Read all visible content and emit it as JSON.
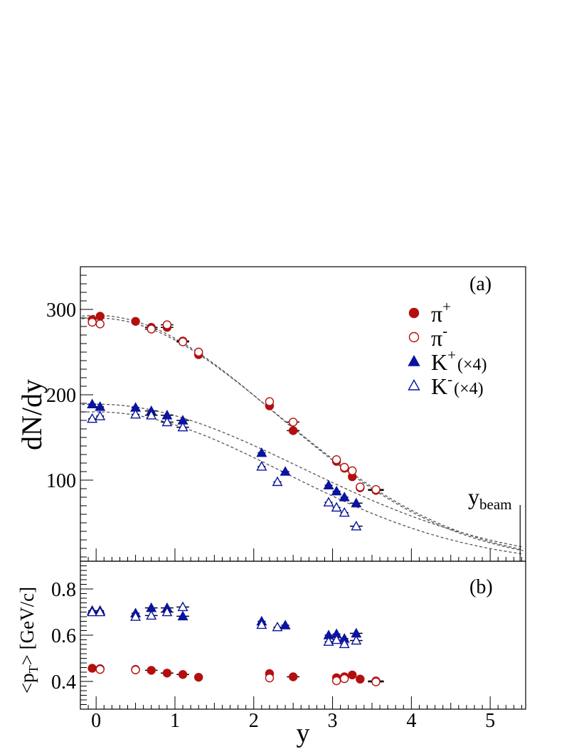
{
  "chart_data": [
    {
      "type": "scatter",
      "panel_label": "(a)",
      "ylabel": "dN/dy",
      "xlim": [
        -0.2,
        5.45
      ],
      "ylim": [
        5,
        350
      ],
      "yticks": [
        100,
        200,
        300
      ],
      "beam_label_main": "y",
      "beam_label_sub": "beam",
      "y_beam": 5.38,
      "series": [
        {
          "name": "pi_plus",
          "legend_main": "π",
          "legend_sup": "+",
          "legend_suffix": "",
          "color": "#b40f0f",
          "marker": "circle",
          "filled": true,
          "points": [
            [
              -0.05,
              288,
              0.05
            ],
            [
              0.05,
              292,
              0.05
            ],
            [
              0.5,
              286,
              0.05
            ],
            [
              0.7,
              279,
              0.08
            ],
            [
              0.9,
              279,
              0.08
            ],
            [
              1.1,
              263,
              0.08
            ],
            [
              1.3,
              247,
              0.05
            ],
            [
              2.2,
              187,
              0.05
            ],
            [
              2.5,
              158,
              0.08
            ],
            [
              3.05,
              122,
              0.05
            ],
            [
              3.15,
              114,
              0.05
            ],
            [
              3.25,
              104,
              0.05
            ],
            [
              3.35,
              91,
              0.05
            ],
            [
              3.55,
              88,
              0.1
            ]
          ]
        },
        {
          "name": "pi_minus",
          "legend_main": "π",
          "legend_sup": "-",
          "legend_suffix": "",
          "color": "#b40f0f",
          "marker": "circle",
          "filled": false,
          "points": [
            [
              -0.05,
              285,
              0.05
            ],
            [
              0.05,
              283,
              0.05
            ],
            [
              0.7,
              277,
              0.08
            ],
            [
              0.9,
              282,
              0.08
            ],
            [
              1.1,
              262,
              0.08
            ],
            [
              1.3,
              250,
              0.05
            ],
            [
              2.2,
              192,
              0.05
            ],
            [
              2.5,
              168,
              0.08
            ],
            [
              3.05,
              124,
              0.05
            ],
            [
              3.15,
              115,
              0.05
            ],
            [
              3.25,
              111,
              0.05
            ],
            [
              3.35,
              92,
              0.05
            ],
            [
              3.55,
              89,
              0.1
            ]
          ]
        },
        {
          "name": "k_plus",
          "legend_main": "K",
          "legend_sup": "+",
          "legend_suffix": "(×4)",
          "color": "#0a14a0",
          "marker": "triangle",
          "filled": true,
          "points": [
            [
              -0.05,
              189,
              0.05
            ],
            [
              0.05,
              186,
              0.05
            ],
            [
              0.5,
              185,
              0.05
            ],
            [
              0.7,
              181,
              0.08
            ],
            [
              0.9,
              176,
              0.08
            ],
            [
              1.1,
              170,
              0.08
            ],
            [
              2.1,
              132,
              0.05
            ],
            [
              2.4,
              110,
              0.05
            ],
            [
              2.95,
              94,
              0.05
            ],
            [
              3.05,
              87,
              0.05
            ],
            [
              3.15,
              80,
              0.05
            ],
            [
              3.3,
              73,
              0.08
            ]
          ]
        },
        {
          "name": "k_minus",
          "legend_main": "K",
          "legend_sup": "-",
          "legend_suffix": "(×4)",
          "color": "#0a14a0",
          "marker": "triangle",
          "filled": false,
          "points": [
            [
              -0.05,
              172,
              0.05
            ],
            [
              0.05,
              175,
              0.05
            ],
            [
              0.5,
              177,
              0.05
            ],
            [
              0.7,
              176,
              0.08
            ],
            [
              0.9,
              168,
              0.08
            ],
            [
              1.1,
              162,
              0.08
            ],
            [
              2.1,
              116,
              0.05
            ],
            [
              2.3,
              98,
              0.05
            ],
            [
              2.95,
              74,
              0.05
            ],
            [
              3.05,
              68,
              0.05
            ],
            [
              3.15,
              62,
              0.05
            ],
            [
              3.3,
              46,
              0.08
            ]
          ]
        }
      ],
      "fits": [
        {
          "name": "fit_pi_1",
          "amplitude": 293,
          "sigma": 2.28
        },
        {
          "name": "fit_pi_2",
          "amplitude": 290,
          "sigma": 2.31
        },
        {
          "name": "fit_k_plus",
          "amplitude": 189,
          "sigma": 2.6
        },
        {
          "name": "fit_k_minus",
          "amplitude": 180,
          "sigma": 2.38
        }
      ]
    },
    {
      "type": "scatter",
      "panel_label": "(b)",
      "ylabel_main": "<p",
      "ylabel_sub": "T",
      "ylabel_suffix": "> [GeV/c]",
      "xlabel": "y",
      "xlim": [
        -0.2,
        5.45
      ],
      "ylim": [
        0.28,
        0.92
      ],
      "xticks": [
        0,
        1,
        2,
        3,
        4,
        5
      ],
      "yticks": [
        0.4,
        0.6,
        0.8
      ],
      "series": [
        {
          "name": "pi_plus",
          "color": "#b40f0f",
          "marker": "circle",
          "filled": true,
          "points": [
            [
              -0.05,
              0.457,
              0.05
            ],
            [
              0.05,
              0.455,
              0.05
            ],
            [
              0.5,
              0.452,
              0.05
            ],
            [
              0.7,
              0.448,
              0.08
            ],
            [
              0.9,
              0.436,
              0.08
            ],
            [
              1.1,
              0.43,
              0.08
            ],
            [
              1.3,
              0.418,
              0.05
            ],
            [
              2.2,
              0.434,
              0.05
            ],
            [
              2.5,
              0.42,
              0.08
            ],
            [
              3.05,
              0.416,
              0.05
            ],
            [
              3.15,
              0.42,
              0.05
            ],
            [
              3.25,
              0.428,
              0.05
            ],
            [
              3.35,
              0.41,
              0.05
            ],
            [
              3.55,
              0.402,
              0.1
            ]
          ]
        },
        {
          "name": "pi_minus",
          "color": "#b40f0f",
          "marker": "circle",
          "filled": false,
          "points": [
            [
              0.05,
              0.452,
              0.05
            ],
            [
              0.5,
              0.45,
              0.05
            ],
            [
              2.2,
              0.415,
              0.05
            ],
            [
              3.05,
              0.403,
              0.05
            ],
            [
              3.15,
              0.412,
              0.05
            ],
            [
              3.55,
              0.398,
              0.1
            ]
          ]
        },
        {
          "name": "k_plus",
          "color": "#0a14a0",
          "marker": "triangle",
          "filled": true,
          "points": [
            [
              -0.05,
              0.706,
              0.05
            ],
            [
              0.05,
              0.706,
              0.05
            ],
            [
              0.5,
              0.695,
              0.05
            ],
            [
              0.7,
              0.718,
              0.08
            ],
            [
              0.9,
              0.718,
              0.08
            ],
            [
              1.1,
              0.682,
              0.08
            ],
            [
              2.1,
              0.66,
              0.05
            ],
            [
              2.4,
              0.643,
              0.05
            ],
            [
              2.95,
              0.6,
              0.05
            ],
            [
              3.05,
              0.605,
              0.05
            ],
            [
              3.15,
              0.585,
              0.05
            ],
            [
              3.3,
              0.608,
              0.08
            ]
          ]
        },
        {
          "name": "k_minus",
          "color": "#0a14a0",
          "marker": "triangle",
          "filled": false,
          "points": [
            [
              -0.05,
              0.7,
              0.05
            ],
            [
              0.05,
              0.7,
              0.05
            ],
            [
              0.5,
              0.68,
              0.05
            ],
            [
              0.7,
              0.685,
              0.08
            ],
            [
              0.9,
              0.7,
              0.08
            ],
            [
              1.1,
              0.722,
              0.08
            ],
            [
              2.1,
              0.645,
              0.05
            ],
            [
              2.3,
              0.635,
              0.05
            ],
            [
              2.95,
              0.572,
              0.05
            ],
            [
              3.05,
              0.58,
              0.05
            ],
            [
              3.15,
              0.562,
              0.05
            ],
            [
              3.3,
              0.577,
              0.08
            ]
          ]
        }
      ]
    }
  ]
}
